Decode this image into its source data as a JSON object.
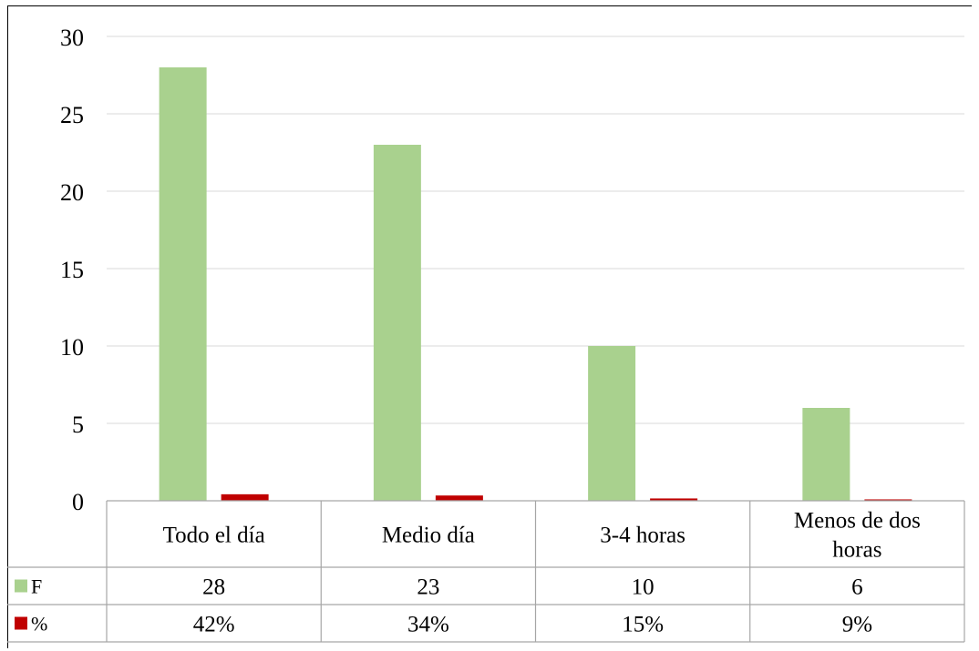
{
  "chart_data": {
    "type": "bar",
    "categories": [
      "Todo el día",
      "Medio día",
      "3-4 horas",
      "Menos de dos horas"
    ],
    "category_lines": [
      [
        "Todo el día"
      ],
      [
        "Medio día"
      ],
      [
        "3-4 horas"
      ],
      [
        "Menos de dos",
        "horas"
      ]
    ],
    "series": [
      {
        "name": "F",
        "values": [
          28,
          23,
          10,
          6
        ],
        "labels": [
          "28",
          "23",
          "10",
          "6"
        ],
        "color": "#a9d18e"
      },
      {
        "name": "%",
        "values": [
          0.42,
          0.34,
          0.15,
          0.09
        ],
        "labels": [
          "42%",
          "34%",
          "15%",
          "9%"
        ],
        "color": "#c00000"
      }
    ],
    "yticks": [
      0,
      5,
      10,
      15,
      20,
      25,
      30
    ],
    "ylim": [
      0,
      30
    ],
    "grid": true,
    "legend": "data-table"
  }
}
